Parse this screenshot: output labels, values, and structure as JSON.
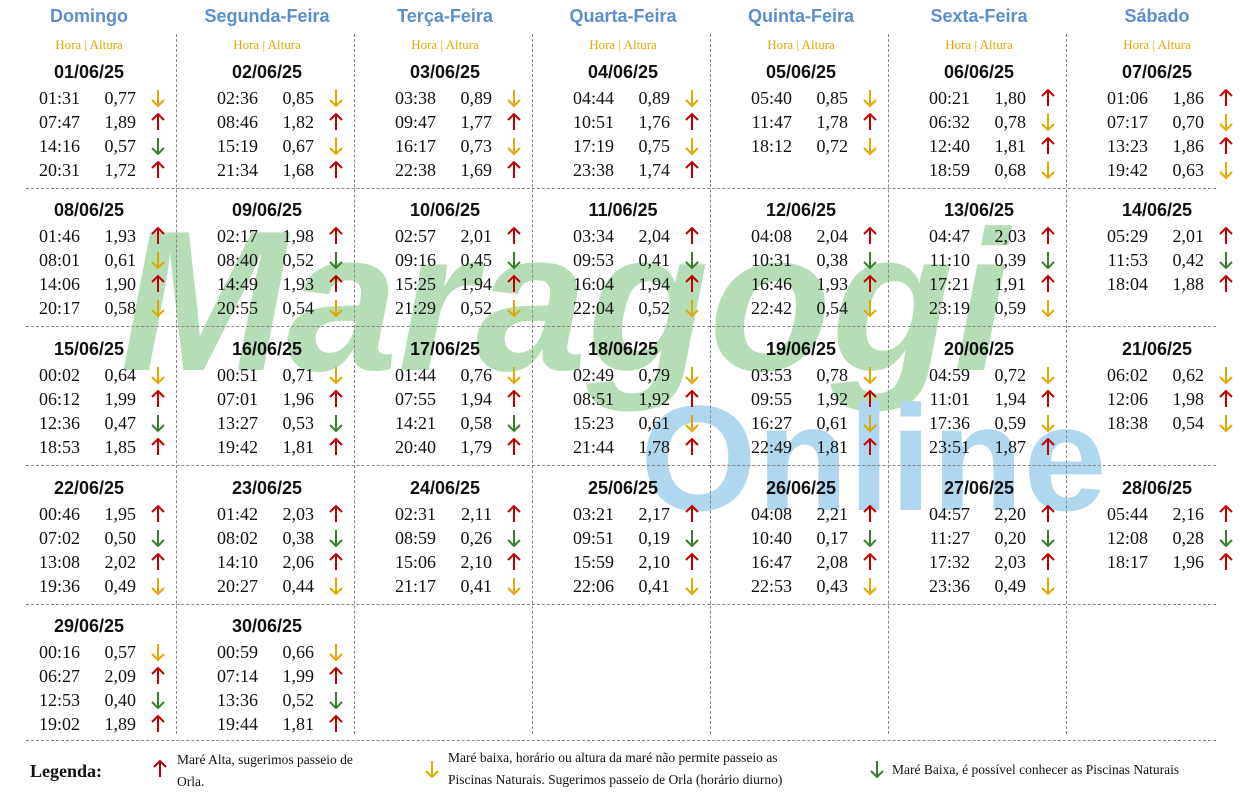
{
  "header": {
    "days": [
      "Domingo",
      "Segunda-Feira",
      "Terça-Feira",
      "Quarta-Feira",
      "Quinta-Feira",
      "Sexta-Feira",
      "Sábado"
    ],
    "sub_label": "Hora | Altura"
  },
  "colors": {
    "day_header": "#5b8fc9",
    "sub_header": "#e0a800",
    "up": "#c00000",
    "down_yellow": "#e0a800",
    "down_green": "#3a7d2c"
  },
  "calendar": [
    {
      "date": "01/06/25",
      "tides": [
        [
          "01:31",
          "0,77",
          "down-yellow"
        ],
        [
          "07:47",
          "1,89",
          "up"
        ],
        [
          "14:16",
          "0,57",
          "down-green"
        ],
        [
          "20:31",
          "1,72",
          "up"
        ]
      ]
    },
    {
      "date": "02/06/25",
      "tides": [
        [
          "02:36",
          "0,85",
          "down-yellow"
        ],
        [
          "08:46",
          "1,82",
          "up"
        ],
        [
          "15:19",
          "0,67",
          "down-yellow"
        ],
        [
          "21:34",
          "1,68",
          "up"
        ]
      ]
    },
    {
      "date": "03/06/25",
      "tides": [
        [
          "03:38",
          "0,89",
          "down-yellow"
        ],
        [
          "09:47",
          "1,77",
          "up"
        ],
        [
          "16:17",
          "0,73",
          "down-yellow"
        ],
        [
          "22:38",
          "1,69",
          "up"
        ]
      ]
    },
    {
      "date": "04/06/25",
      "tides": [
        [
          "04:44",
          "0,89",
          "down-yellow"
        ],
        [
          "10:51",
          "1,76",
          "up"
        ],
        [
          "17:19",
          "0,75",
          "down-yellow"
        ],
        [
          "23:38",
          "1,74",
          "up"
        ]
      ]
    },
    {
      "date": "05/06/25",
      "tides": [
        [
          "05:40",
          "0,85",
          "down-yellow"
        ],
        [
          "11:47",
          "1,78",
          "up"
        ],
        [
          "18:12",
          "0,72",
          "down-yellow"
        ]
      ]
    },
    {
      "date": "06/06/25",
      "tides": [
        [
          "00:21",
          "1,80",
          "up"
        ],
        [
          "06:32",
          "0,78",
          "down-yellow"
        ],
        [
          "12:40",
          "1,81",
          "up"
        ],
        [
          "18:59",
          "0,68",
          "down-yellow"
        ]
      ]
    },
    {
      "date": "07/06/25",
      "tides": [
        [
          "01:06",
          "1,86",
          "up"
        ],
        [
          "07:17",
          "0,70",
          "down-yellow"
        ],
        [
          "13:23",
          "1,86",
          "up"
        ],
        [
          "19:42",
          "0,63",
          "down-yellow"
        ]
      ]
    },
    {
      "date": "08/06/25",
      "tides": [
        [
          "01:46",
          "1,93",
          "up"
        ],
        [
          "08:01",
          "0,61",
          "down-yellow"
        ],
        [
          "14:06",
          "1,90",
          "up"
        ],
        [
          "20:17",
          "0,58",
          "down-yellow"
        ]
      ]
    },
    {
      "date": "09/06/25",
      "tides": [
        [
          "02:17",
          "1,98",
          "up"
        ],
        [
          "08:40",
          "0,52",
          "down-green"
        ],
        [
          "14:49",
          "1,93",
          "up"
        ],
        [
          "20:55",
          "0,54",
          "down-yellow"
        ]
      ]
    },
    {
      "date": "10/06/25",
      "tides": [
        [
          "02:57",
          "2,01",
          "up"
        ],
        [
          "09:16",
          "0,45",
          "down-green"
        ],
        [
          "15:25",
          "1,94",
          "up"
        ],
        [
          "21:29",
          "0,52",
          "down-yellow"
        ]
      ]
    },
    {
      "date": "11/06/25",
      "tides": [
        [
          "03:34",
          "2,04",
          "up"
        ],
        [
          "09:53",
          "0,41",
          "down-green"
        ],
        [
          "16:04",
          "1,94",
          "up"
        ],
        [
          "22:04",
          "0,52",
          "down-yellow"
        ]
      ]
    },
    {
      "date": "12/06/25",
      "tides": [
        [
          "04:08",
          "2,04",
          "up"
        ],
        [
          "10:31",
          "0,38",
          "down-green"
        ],
        [
          "16:46",
          "1,93",
          "up"
        ],
        [
          "22:42",
          "0,54",
          "down-yellow"
        ]
      ]
    },
    {
      "date": "13/06/25",
      "tides": [
        [
          "04:47",
          "2,03",
          "up"
        ],
        [
          "11:10",
          "0,39",
          "down-green"
        ],
        [
          "17:21",
          "1,91",
          "up"
        ],
        [
          "23:19",
          "0,59",
          "down-yellow"
        ]
      ]
    },
    {
      "date": "14/06/25",
      "tides": [
        [
          "05:29",
          "2,01",
          "up"
        ],
        [
          "11:53",
          "0,42",
          "down-green"
        ],
        [
          "18:04",
          "1,88",
          "up"
        ]
      ]
    },
    {
      "date": "15/06/25",
      "tides": [
        [
          "00:02",
          "0,64",
          "down-yellow"
        ],
        [
          "06:12",
          "1,99",
          "up"
        ],
        [
          "12:36",
          "0,47",
          "down-green"
        ],
        [
          "18:53",
          "1,85",
          "up"
        ]
      ]
    },
    {
      "date": "16/06/25",
      "tides": [
        [
          "00:51",
          "0,71",
          "down-yellow"
        ],
        [
          "07:01",
          "1,96",
          "up"
        ],
        [
          "13:27",
          "0,53",
          "down-green"
        ],
        [
          "19:42",
          "1,81",
          "up"
        ]
      ]
    },
    {
      "date": "17/06/25",
      "tides": [
        [
          "01:44",
          "0,76",
          "down-yellow"
        ],
        [
          "07:55",
          "1,94",
          "up"
        ],
        [
          "14:21",
          "0,58",
          "down-green"
        ],
        [
          "20:40",
          "1,79",
          "up"
        ]
      ]
    },
    {
      "date": "18/06/25",
      "tides": [
        [
          "02:49",
          "0,79",
          "down-yellow"
        ],
        [
          "08:51",
          "1,92",
          "up"
        ],
        [
          "15:23",
          "0,61",
          "down-yellow"
        ],
        [
          "21:44",
          "1,78",
          "up"
        ]
      ]
    },
    {
      "date": "19/06/25",
      "tides": [
        [
          "03:53",
          "0,78",
          "down-yellow"
        ],
        [
          "09:55",
          "1,92",
          "up"
        ],
        [
          "16:27",
          "0,61",
          "down-yellow"
        ],
        [
          "22:49",
          "1,81",
          "up"
        ]
      ]
    },
    {
      "date": "20/06/25",
      "tides": [
        [
          "04:59",
          "0,72",
          "down-yellow"
        ],
        [
          "11:01",
          "1,94",
          "up"
        ],
        [
          "17:36",
          "0,59",
          "down-yellow"
        ],
        [
          "23:51",
          "1,87",
          "up"
        ]
      ]
    },
    {
      "date": "21/06/25",
      "tides": [
        [
          "06:02",
          "0,62",
          "down-yellow"
        ],
        [
          "12:06",
          "1,98",
          "up"
        ],
        [
          "18:38",
          "0,54",
          "down-yellow"
        ]
      ]
    },
    {
      "date": "22/06/25",
      "tides": [
        [
          "00:46",
          "1,95",
          "up"
        ],
        [
          "07:02",
          "0,50",
          "down-green"
        ],
        [
          "13:08",
          "2,02",
          "up"
        ],
        [
          "19:36",
          "0,49",
          "down-yellow"
        ]
      ]
    },
    {
      "date": "23/06/25",
      "tides": [
        [
          "01:42",
          "2,03",
          "up"
        ],
        [
          "08:02",
          "0,38",
          "down-green"
        ],
        [
          "14:10",
          "2,06",
          "up"
        ],
        [
          "20:27",
          "0,44",
          "down-yellow"
        ]
      ]
    },
    {
      "date": "24/06/25",
      "tides": [
        [
          "02:31",
          "2,11",
          "up"
        ],
        [
          "08:59",
          "0,26",
          "down-green"
        ],
        [
          "15:06",
          "2,10",
          "up"
        ],
        [
          "21:17",
          "0,41",
          "down-yellow"
        ]
      ]
    },
    {
      "date": "25/06/25",
      "tides": [
        [
          "03:21",
          "2,17",
          "up"
        ],
        [
          "09:51",
          "0,19",
          "down-green"
        ],
        [
          "15:59",
          "2,10",
          "up"
        ],
        [
          "22:06",
          "0,41",
          "down-yellow"
        ]
      ]
    },
    {
      "date": "26/06/25",
      "tides": [
        [
          "04:08",
          "2,21",
          "up"
        ],
        [
          "10:40",
          "0,17",
          "down-green"
        ],
        [
          "16:47",
          "2,08",
          "up"
        ],
        [
          "22:53",
          "0,43",
          "down-yellow"
        ]
      ]
    },
    {
      "date": "27/06/25",
      "tides": [
        [
          "04:57",
          "2,20",
          "up"
        ],
        [
          "11:27",
          "0,20",
          "down-green"
        ],
        [
          "17:32",
          "2,03",
          "up"
        ],
        [
          "23:36",
          "0,49",
          "down-yellow"
        ]
      ]
    },
    {
      "date": "28/06/25",
      "tides": [
        [
          "05:44",
          "2,16",
          "up"
        ],
        [
          "12:08",
          "0,28",
          "down-green"
        ],
        [
          "18:17",
          "1,96",
          "up"
        ]
      ]
    },
    {
      "date": "29/06/25",
      "tides": [
        [
          "00:16",
          "0,57",
          "down-yellow"
        ],
        [
          "06:27",
          "2,09",
          "up"
        ],
        [
          "12:53",
          "0,40",
          "down-green"
        ],
        [
          "19:02",
          "1,89",
          "up"
        ]
      ]
    },
    {
      "date": "30/06/25",
      "tides": [
        [
          "00:59",
          "0,66",
          "down-yellow"
        ],
        [
          "07:14",
          "1,99",
          "up"
        ],
        [
          "13:36",
          "0,52",
          "down-green"
        ],
        [
          "19:44",
          "1,81",
          "up"
        ]
      ]
    }
  ],
  "legend": {
    "title": "Legenda:",
    "up_text_1": "Maré Alta, sugerimos passeio de",
    "up_text_2": "Orla.",
    "yellow_text_1": "Maré baixa, horário ou altura da maré não permite passeio as",
    "yellow_text_2": "Piscinas Naturais. Sugerimos passeio de Orla (horário diurno)",
    "green_text": "Maré Baixa, é possível conhecer as Piscinas Naturais"
  },
  "watermark": {
    "line1": "Maragogi",
    "line2": "Online"
  }
}
